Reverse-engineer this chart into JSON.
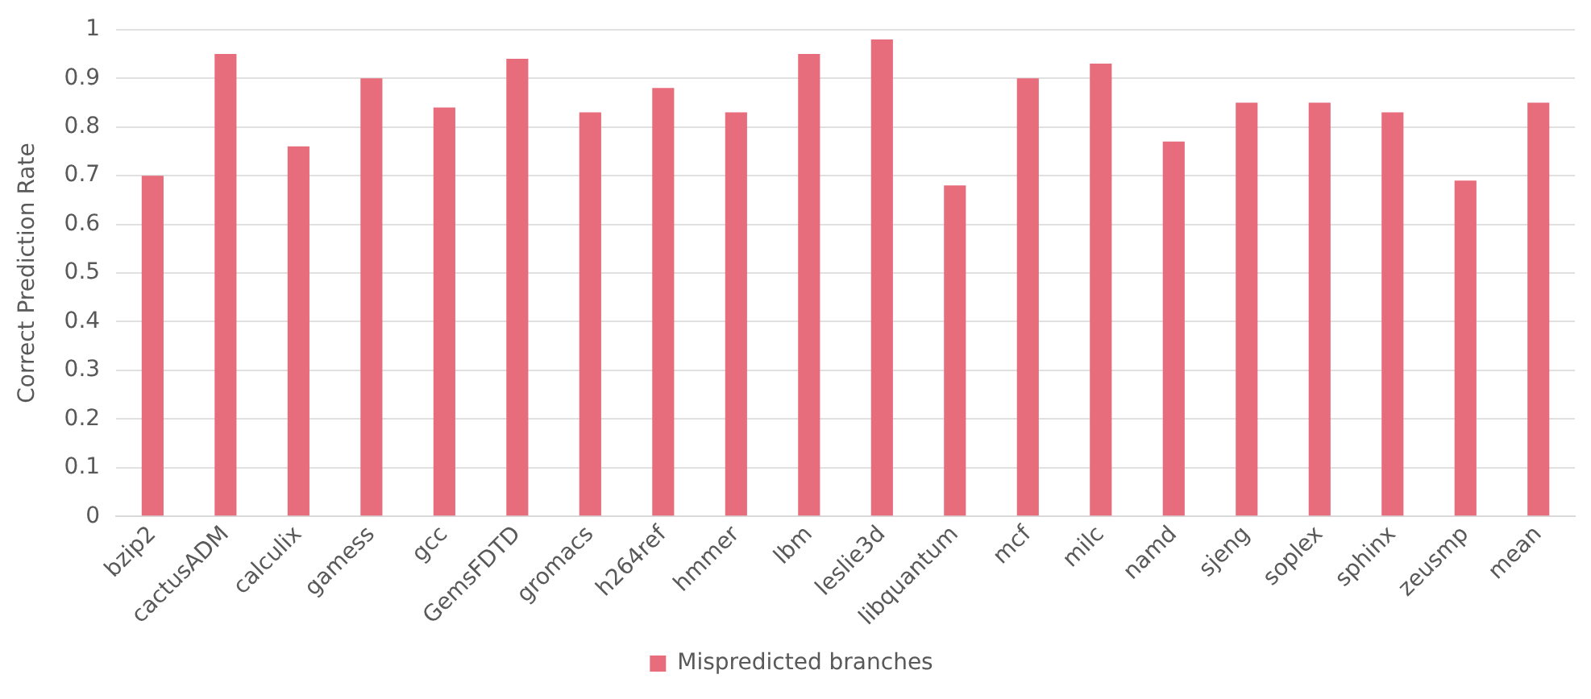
{
  "chart_data": {
    "type": "bar",
    "ylabel": "Correct Prediction Rate",
    "categories": [
      "bzip2",
      "cactusADM",
      "calculix",
      "gamess",
      "gcc",
      "GemsFDTD",
      "gromacs",
      "h264ref",
      "hmmer",
      "lbm",
      "leslie3d",
      "libquantum",
      "mcf",
      "milc",
      "namd",
      "sjeng",
      "soplex",
      "sphinx",
      "zeusmp",
      "mean"
    ],
    "series": [
      {
        "name": "Mispredicted branches",
        "color": "#e76c7c",
        "values": [
          0.7,
          0.95,
          0.76,
          0.9,
          0.84,
          0.94,
          0.83,
          0.88,
          0.83,
          0.95,
          0.98,
          0.68,
          0.9,
          0.93,
          0.77,
          0.85,
          0.85,
          0.83,
          0.69,
          0.85
        ]
      }
    ],
    "ylim": [
      0,
      1
    ],
    "yticks": [
      0,
      0.1,
      0.2,
      0.3,
      0.4,
      0.5,
      0.6,
      0.7,
      0.8,
      0.9,
      1
    ],
    "grid": "y",
    "legend": "bottom"
  }
}
